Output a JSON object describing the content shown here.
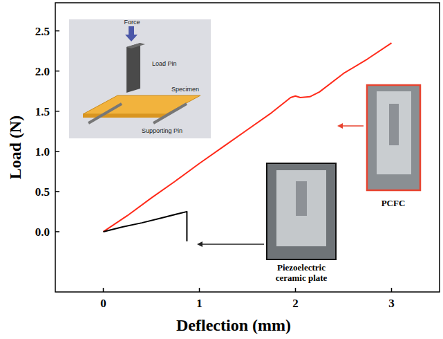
{
  "chart_data": {
    "type": "line",
    "x_label": "Deflection (mm)",
    "y_label": "Load (N)",
    "xlim": [
      -0.5,
      3.5
    ],
    "xticks": [
      0,
      1,
      2,
      3
    ],
    "ylim": [
      -0.75,
      2.85
    ],
    "yticks": [
      {
        "value": 0,
        "label": "0.0"
      },
      {
        "value": 0.5,
        "label": "0.5"
      },
      {
        "value": 1,
        "label": "1.0"
      },
      {
        "value": 1.5,
        "label": "1.5"
      },
      {
        "value": 2,
        "label": "2.0"
      },
      {
        "value": 2.5,
        "label": "2.5"
      }
    ],
    "grid": false,
    "annotations": [
      "Force",
      "Load Pin",
      "Specimen",
      "Supporting Pin"
    ],
    "series": [
      {
        "name": "PCFC",
        "color": "#ff2a1a",
        "x": [
          0,
          0.25,
          0.5,
          0.75,
          1.0,
          1.25,
          1.5,
          1.75,
          1.95,
          2.0,
          2.05,
          2.15,
          2.25,
          2.5,
          2.75,
          3.0
        ],
        "values": [
          0,
          0.2,
          0.42,
          0.63,
          0.85,
          1.06,
          1.27,
          1.48,
          1.67,
          1.69,
          1.67,
          1.68,
          1.74,
          1.97,
          2.15,
          2.35
        ]
      },
      {
        "name": "Piezoelectric ceramic plate",
        "color": "#000000",
        "x": [
          0,
          0.2,
          0.4,
          0.6,
          0.8,
          0.87,
          0.87
        ],
        "values": [
          0,
          0.06,
          0.11,
          0.17,
          0.23,
          0.25,
          -0.12
        ]
      }
    ]
  }
}
